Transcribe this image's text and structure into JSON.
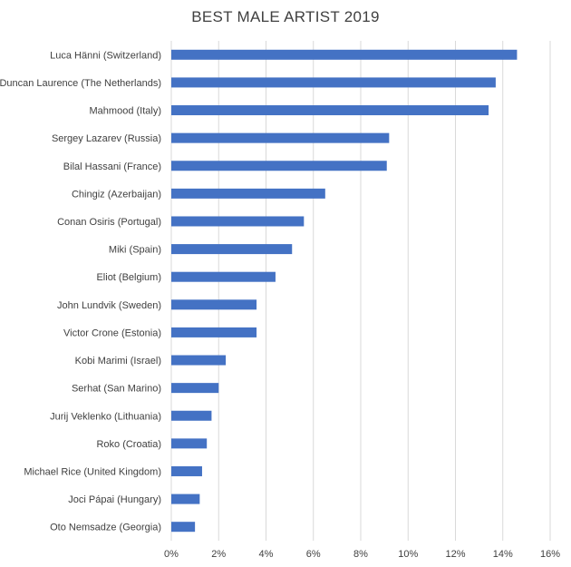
{
  "chart_data": {
    "type": "bar",
    "orientation": "horizontal",
    "title": "BEST MALE ARTIST 2019",
    "xlabel": "",
    "ylabel": "",
    "categories": [
      "Luca Hänni (Switzerland)",
      "Duncan Laurence (The Netherlands)",
      "Mahmood (Italy)",
      "Sergey Lazarev (Russia)",
      "Bilal Hassani (France)",
      "Chingiz (Azerbaijan)",
      "Conan Osiris (Portugal)",
      "Miki (Spain)",
      "Eliot (Belgium)",
      "John Lundvik (Sweden)",
      "Victor Crone (Estonia)",
      "Kobi Marimi (Israel)",
      "Serhat (San Marino)",
      "Jurij Veklenko (Lithuania)",
      "Roko (Croatia)",
      "Michael Rice (United Kingdom)",
      "Joci Pápai (Hungary)",
      "Oto Nemsadze (Georgia)"
    ],
    "values": [
      14.6,
      13.7,
      13.4,
      9.2,
      9.1,
      6.5,
      5.6,
      5.1,
      4.4,
      3.6,
      3.6,
      2.3,
      2.0,
      1.7,
      1.5,
      1.3,
      1.2,
      1.0
    ],
    "xlim": [
      0,
      16
    ],
    "xticks": [
      "0%",
      "2%",
      "4%",
      "6%",
      "8%",
      "10%",
      "12%",
      "14%",
      "16%"
    ],
    "grid": true,
    "legend": "none",
    "bar_color": "#4472c4"
  }
}
